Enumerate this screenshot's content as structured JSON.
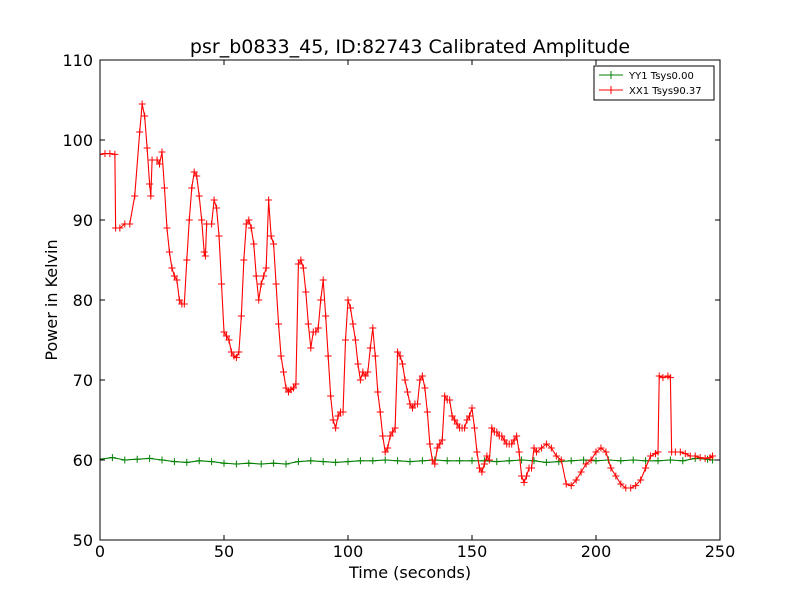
{
  "chart_data": {
    "type": "line",
    "title": "psr_b0833_45, ID:82743 Calibrated Amplitude",
    "xlabel": "Time (seconds)",
    "ylabel": "Power in Kelvin",
    "xlim": [
      0,
      250
    ],
    "ylim": [
      50,
      110
    ],
    "xticks": [
      0,
      50,
      100,
      150,
      200,
      250
    ],
    "yticks": [
      50,
      60,
      70,
      80,
      90,
      100,
      110
    ],
    "grid": false,
    "legend_position": "top-right",
    "marker": "+",
    "series": [
      {
        "name": "YY1 Tsys0.00",
        "color": "#008000",
        "points": [
          [
            0,
            60.1
          ],
          [
            5,
            60.3
          ],
          [
            10,
            60.0
          ],
          [
            15,
            60.1
          ],
          [
            20,
            60.2
          ],
          [
            25,
            60.0
          ],
          [
            30,
            59.8
          ],
          [
            35,
            59.7
          ],
          [
            40,
            59.9
          ],
          [
            45,
            59.8
          ],
          [
            50,
            59.6
          ],
          [
            55,
            59.5
          ],
          [
            60,
            59.6
          ],
          [
            65,
            59.5
          ],
          [
            70,
            59.6
          ],
          [
            75,
            59.5
          ],
          [
            80,
            59.8
          ],
          [
            85,
            59.9
          ],
          [
            90,
            59.8
          ],
          [
            95,
            59.7
          ],
          [
            100,
            59.8
          ],
          [
            105,
            59.9
          ],
          [
            110,
            59.9
          ],
          [
            115,
            60.0
          ],
          [
            120,
            59.9
          ],
          [
            125,
            59.8
          ],
          [
            130,
            59.9
          ],
          [
            135,
            60.0
          ],
          [
            140,
            59.9
          ],
          [
            145,
            59.9
          ],
          [
            150,
            59.9
          ],
          [
            155,
            59.9
          ],
          [
            160,
            59.8
          ],
          [
            165,
            59.9
          ],
          [
            170,
            60.0
          ],
          [
            175,
            59.9
          ],
          [
            180,
            59.7
          ],
          [
            185,
            59.8
          ],
          [
            190,
            59.9
          ],
          [
            195,
            60.0
          ],
          [
            200,
            59.9
          ],
          [
            205,
            60.0
          ],
          [
            210,
            59.9
          ],
          [
            215,
            60.0
          ],
          [
            220,
            59.9
          ],
          [
            225,
            59.9
          ],
          [
            230,
            60.0
          ],
          [
            235,
            59.9
          ],
          [
            240,
            60.2
          ],
          [
            245,
            60.1
          ],
          [
            247,
            60.0
          ]
        ]
      },
      {
        "name": "XX1 Tsys90.37",
        "color": "#ff0000",
        "points": [
          [
            0,
            98.2
          ],
          [
            2,
            98.3
          ],
          [
            4,
            98.3
          ],
          [
            6,
            98.2
          ],
          [
            6.3,
            89.0
          ],
          [
            8,
            89.0
          ],
          [
            10,
            89.5
          ],
          [
            12,
            89.5
          ],
          [
            14,
            93.0
          ],
          [
            16,
            101.0
          ],
          [
            17,
            104.5
          ],
          [
            18,
            103.0
          ],
          [
            19,
            99.0
          ],
          [
            20,
            94.5
          ],
          [
            20.5,
            93.0
          ],
          [
            21,
            97.5
          ],
          [
            23,
            97.5
          ],
          [
            24,
            97.0
          ],
          [
            25,
            98.5
          ],
          [
            26,
            94.0
          ],
          [
            27,
            89.0
          ],
          [
            28,
            86.0
          ],
          [
            29,
            84.0
          ],
          [
            30,
            83.0
          ],
          [
            31,
            82.5
          ],
          [
            32,
            80.0
          ],
          [
            33,
            79.5
          ],
          [
            34,
            79.5
          ],
          [
            35,
            85.0
          ],
          [
            36,
            90.0
          ],
          [
            37,
            94.0
          ],
          [
            38,
            96.0
          ],
          [
            39,
            95.5
          ],
          [
            40,
            93.0
          ],
          [
            41,
            90.0
          ],
          [
            42,
            86.0
          ],
          [
            42.5,
            85.5
          ],
          [
            43,
            89.5
          ],
          [
            45,
            89.5
          ],
          [
            46,
            92.5
          ],
          [
            47,
            91.5
          ],
          [
            48,
            88.0
          ],
          [
            49,
            82.0
          ],
          [
            50,
            76.0
          ],
          [
            51,
            75.5
          ],
          [
            52,
            75.0
          ],
          [
            53,
            73.5
          ],
          [
            54,
            73.0
          ],
          [
            55,
            72.8
          ],
          [
            56,
            73.5
          ],
          [
            57,
            78.0
          ],
          [
            58,
            85.0
          ],
          [
            59,
            89.5
          ],
          [
            60,
            90.0
          ],
          [
            61,
            89.0
          ],
          [
            62,
            87.0
          ],
          [
            63,
            83.0
          ],
          [
            64,
            80.0
          ],
          [
            65,
            82.0
          ],
          [
            66,
            83.0
          ],
          [
            67,
            84.0
          ],
          [
            68,
            92.5
          ],
          [
            69,
            88.0
          ],
          [
            70,
            87.0
          ],
          [
            71,
            82.0
          ],
          [
            72,
            77.0
          ],
          [
            73,
            73.0
          ],
          [
            74,
            71.0
          ],
          [
            75,
            69.0
          ],
          [
            76,
            68.5
          ],
          [
            77,
            68.8
          ],
          [
            78,
            69.0
          ],
          [
            79,
            69.5
          ],
          [
            80,
            84.5
          ],
          [
            81,
            85.0
          ],
          [
            82,
            84.0
          ],
          [
            83,
            81.0
          ],
          [
            84,
            77.0
          ],
          [
            85,
            74.0
          ],
          [
            86,
            76.0
          ],
          [
            87,
            76.0
          ],
          [
            88,
            76.5
          ],
          [
            89,
            80.0
          ],
          [
            90,
            82.5
          ],
          [
            91,
            78.0
          ],
          [
            92,
            73.0
          ],
          [
            93,
            68.0
          ],
          [
            94,
            65.0
          ],
          [
            95,
            64.0
          ],
          [
            96,
            65.5
          ],
          [
            97,
            66.0
          ],
          [
            98,
            66.0
          ],
          [
            99,
            75.0
          ],
          [
            100,
            80.0
          ],
          [
            101,
            79.0
          ],
          [
            102,
            77.0
          ],
          [
            103,
            75.0
          ],
          [
            104,
            72.0
          ],
          [
            105,
            70.0
          ],
          [
            106,
            71.0
          ],
          [
            107,
            70.5
          ],
          [
            108,
            71.0
          ],
          [
            109,
            74.0
          ],
          [
            110,
            76.5
          ],
          [
            111,
            73.0
          ],
          [
            112,
            68.5
          ],
          [
            113,
            66.0
          ],
          [
            114,
            63.0
          ],
          [
            115,
            61.0
          ],
          [
            116,
            61.5
          ],
          [
            117,
            63.0
          ],
          [
            118,
            63.5
          ],
          [
            119,
            64.0
          ],
          [
            120,
            73.5
          ],
          [
            121,
            73.0
          ],
          [
            122,
            72.0
          ],
          [
            123,
            70.0
          ],
          [
            124,
            68.5
          ],
          [
            125,
            67.0
          ],
          [
            126,
            66.5
          ],
          [
            127,
            67.0
          ],
          [
            128,
            67.0
          ],
          [
            129,
            70.0
          ],
          [
            130,
            70.5
          ],
          [
            131,
            69.0
          ],
          [
            132,
            66.0
          ],
          [
            133,
            62.0
          ],
          [
            134,
            60.0
          ],
          [
            135,
            59.5
          ],
          [
            136,
            61.5
          ],
          [
            137,
            62.0
          ],
          [
            138,
            62.5
          ],
          [
            139,
            68.0
          ],
          [
            140,
            67.5
          ],
          [
            141,
            67.5
          ],
          [
            142,
            65.5
          ],
          [
            143,
            65.0
          ],
          [
            144,
            64.5
          ],
          [
            145,
            64.0
          ],
          [
            146,
            64.0
          ],
          [
            147,
            64.0
          ],
          [
            148,
            65.0
          ],
          [
            149,
            65.5
          ],
          [
            150,
            66.5
          ],
          [
            151,
            64.0
          ],
          [
            152,
            61.0
          ],
          [
            153,
            59.0
          ],
          [
            154,
            58.5
          ],
          [
            155,
            59.5
          ],
          [
            156,
            60.5
          ],
          [
            157,
            60.0
          ],
          [
            158,
            64.0
          ],
          [
            159,
            63.5
          ],
          [
            160,
            63.5
          ],
          [
            161,
            63.0
          ],
          [
            162,
            63.0
          ],
          [
            163,
            62.5
          ],
          [
            164,
            62.0
          ],
          [
            165,
            62.0
          ],
          [
            166,
            62.0
          ],
          [
            167,
            62.5
          ],
          [
            168,
            63.0
          ],
          [
            169,
            61.0
          ],
          [
            170,
            58.0
          ],
          [
            171,
            57.2
          ],
          [
            172,
            58.0
          ],
          [
            173,
            59.0
          ],
          [
            174,
            59.0
          ],
          [
            175,
            61.5
          ],
          [
            176,
            61.0
          ],
          [
            178,
            61.5
          ],
          [
            180,
            62.0
          ],
          [
            182,
            61.5
          ],
          [
            184,
            60.5
          ],
          [
            186,
            60.0
          ],
          [
            188,
            57.0
          ],
          [
            190,
            56.8
          ],
          [
            192,
            57.5
          ],
          [
            194,
            58.5
          ],
          [
            196,
            59.5
          ],
          [
            198,
            60.0
          ],
          [
            200,
            61.0
          ],
          [
            202,
            61.5
          ],
          [
            204,
            61.0
          ],
          [
            206,
            59.0
          ],
          [
            208,
            58.0
          ],
          [
            210,
            57.0
          ],
          [
            212,
            56.5
          ],
          [
            214,
            56.5
          ],
          [
            216,
            56.8
          ],
          [
            218,
            57.5
          ],
          [
            220,
            59.0
          ],
          [
            222,
            60.5
          ],
          [
            224,
            60.8
          ],
          [
            225,
            61.0
          ],
          [
            225.5,
            70.5
          ],
          [
            227,
            70.3
          ],
          [
            229,
            70.5
          ],
          [
            230,
            70.3
          ],
          [
            230.5,
            61.0
          ],
          [
            232,
            61.0
          ],
          [
            234,
            61.0
          ],
          [
            236,
            60.8
          ],
          [
            238,
            60.5
          ],
          [
            240,
            60.5
          ],
          [
            242,
            60.3
          ],
          [
            244,
            60.2
          ],
          [
            246,
            60.3
          ],
          [
            247,
            60.5
          ]
        ]
      }
    ]
  }
}
